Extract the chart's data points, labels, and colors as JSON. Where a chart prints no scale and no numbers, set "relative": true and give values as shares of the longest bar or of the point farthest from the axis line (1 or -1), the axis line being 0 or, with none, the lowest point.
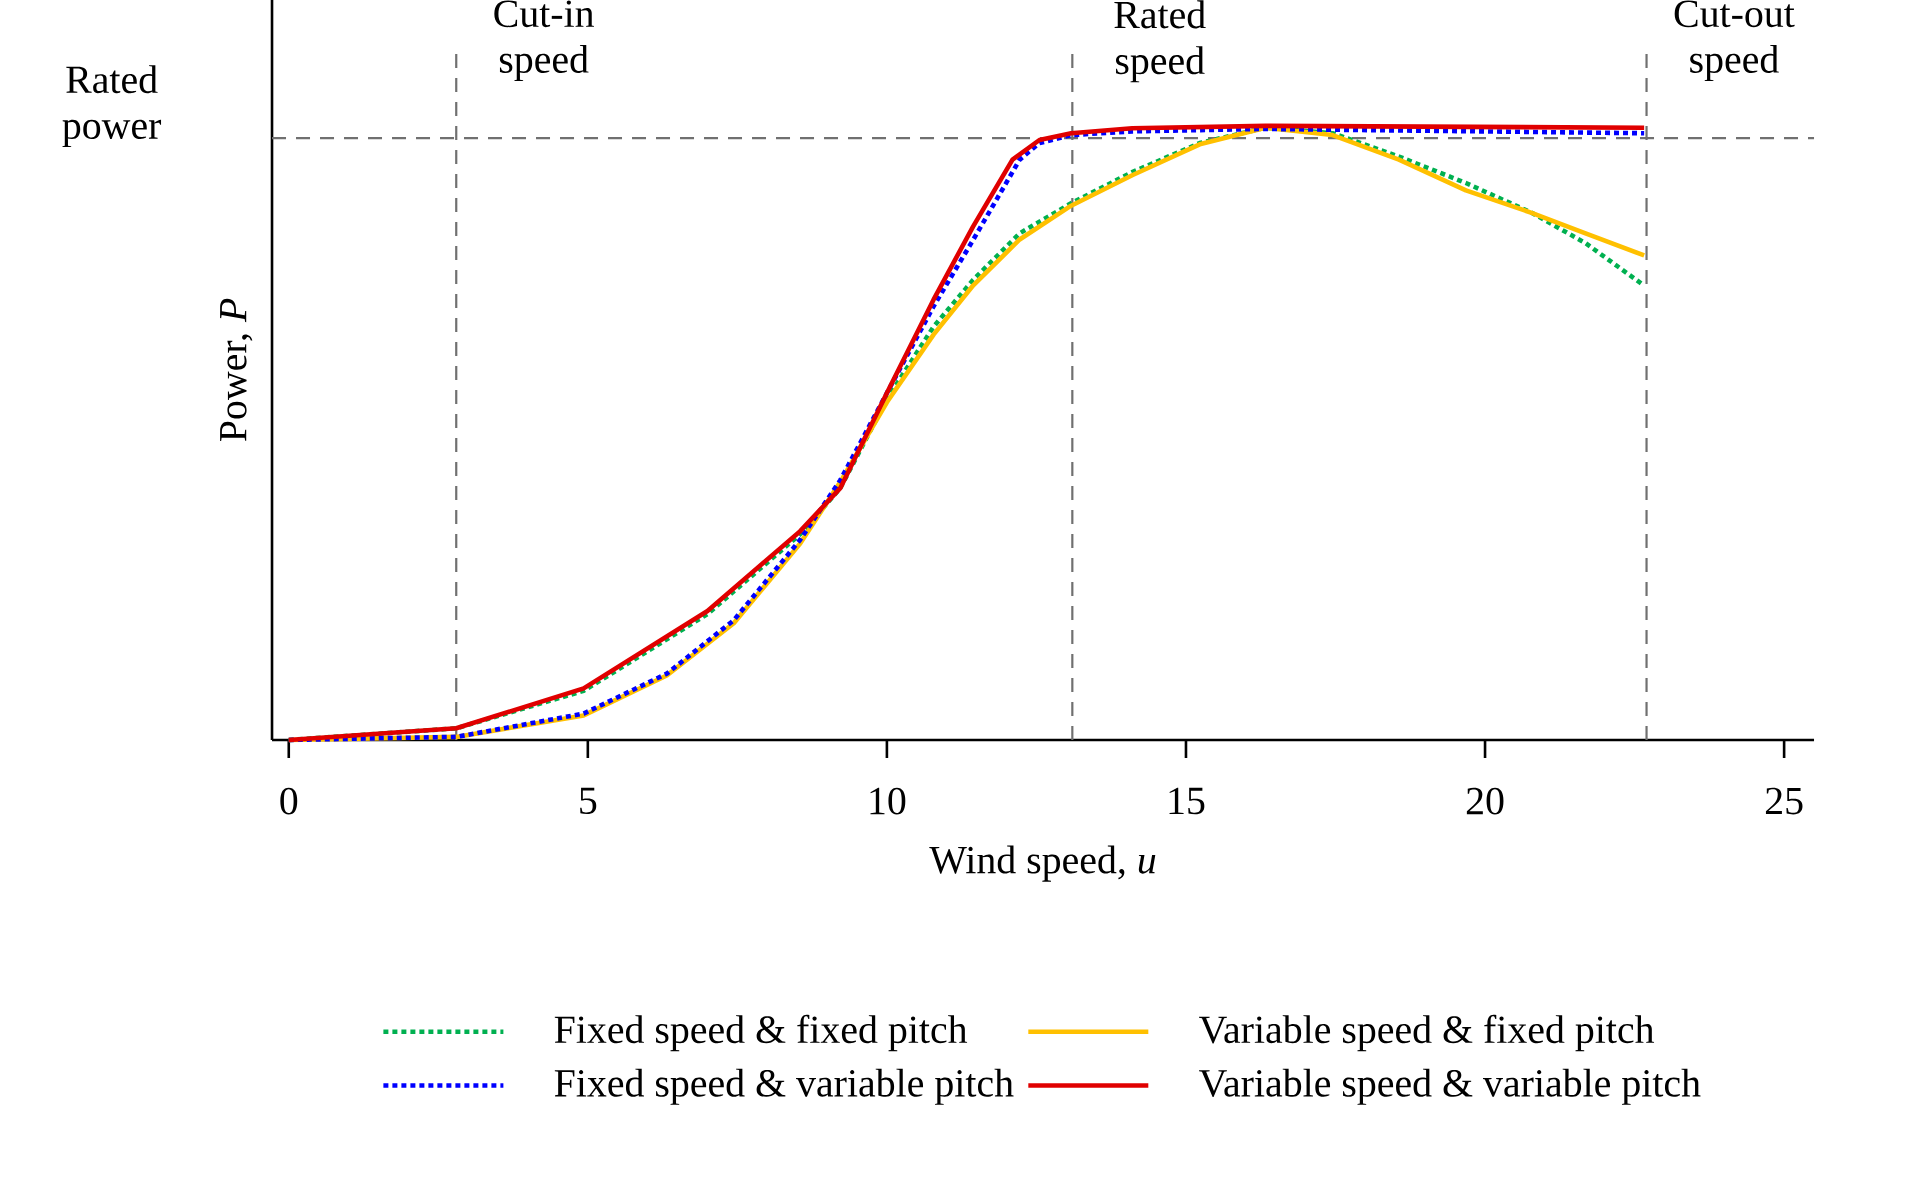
{
  "chart_data": {
    "type": "line",
    "relative": true,
    "xlabel": "Wind speed, *u*",
    "ylabel": "Power, *P*",
    "xlim": [
      -0.28,
      25.5
    ],
    "xticks": [
      0,
      5,
      10,
      15,
      20,
      25
    ],
    "legend": "bottom",
    "series": [
      {
        "name": "Fixed speed & fixed pitch",
        "color": "#00b050",
        "line_style": "dotted",
        "x": [
          0,
          2.8,
          4.93,
          7.0,
          8.55,
          9.22,
          10.0,
          10.78,
          11.44,
          12.22,
          13.08,
          14.11,
          15.23,
          16.33,
          17.45,
          18.56,
          19.68,
          20.79,
          21.68,
          22.66
        ],
        "values": [
          0,
          0.019,
          0.08,
          0.205,
          0.335,
          0.41,
          0.555,
          0.673,
          0.749,
          0.825,
          0.874,
          0.925,
          0.972,
          0.997,
          0.988,
          0.95,
          0.907,
          0.858,
          0.809,
          0.74
        ]
      },
      {
        "name": "Variable speed & fixed pitch",
        "color": "#ffc000",
        "line_style": "solid",
        "x": [
          0,
          2.8,
          4.93,
          6.32,
          7.44,
          8.55,
          9.22,
          10.0,
          10.78,
          11.44,
          12.22,
          13.08,
          14.11,
          15.23,
          16.33,
          17.45,
          18.56,
          19.68,
          20.79,
          21.68,
          22.66
        ],
        "values": [
          0,
          0.005,
          0.04,
          0.105,
          0.19,
          0.32,
          0.42,
          0.55,
          0.66,
          0.74,
          0.815,
          0.87,
          0.92,
          0.97,
          0.997,
          0.985,
          0.945,
          0.895,
          0.858,
          0.825,
          0.789
        ]
      },
      {
        "name": "Fixed speed & variable pitch",
        "color": "#0000ff",
        "line_style": "dotted",
        "x": [
          0,
          2.8,
          4.93,
          6.32,
          7.44,
          8.55,
          9.22,
          10.0,
          10.78,
          11.44,
          12.22,
          12.55,
          13.08,
          14.1,
          16.33,
          22.66
        ],
        "values": [
          0,
          0.005,
          0.043,
          0.108,
          0.195,
          0.326,
          0.423,
          0.565,
          0.706,
          0.814,
          0.945,
          0.972,
          0.985,
          0.991,
          0.995,
          0.988
        ]
      },
      {
        "name": "Variable speed & variable pitch",
        "color": "#e00000",
        "line_style": "solid",
        "x": [
          0,
          2.8,
          4.93,
          7.0,
          8.55,
          9.22,
          10.0,
          10.78,
          11.44,
          12.1,
          12.55,
          13.08,
          14.1,
          16.33,
          22.66
        ],
        "values": [
          0,
          0.019,
          0.084,
          0.21,
          0.34,
          0.41,
          0.565,
          0.717,
          0.836,
          0.945,
          0.977,
          0.988,
          0.996,
          1.0,
          0.997
        ]
      }
    ],
    "ref_lines": [
      {
        "axis": "x",
        "value": 2.8,
        "label": "Cut-in speed",
        "color": "#707070",
        "line_style": "dashed"
      },
      {
        "axis": "x",
        "value": 13.1,
        "label": "Rated speed",
        "color": "#707070",
        "line_style": "dashed"
      },
      {
        "axis": "x",
        "value": 22.7,
        "label": "Cut-out speed",
        "color": "#707070",
        "line_style": "dashed"
      },
      {
        "axis": "y",
        "value": 0.98,
        "label": "Rated power",
        "color": "#707070",
        "line_style": "dashed"
      }
    ]
  }
}
